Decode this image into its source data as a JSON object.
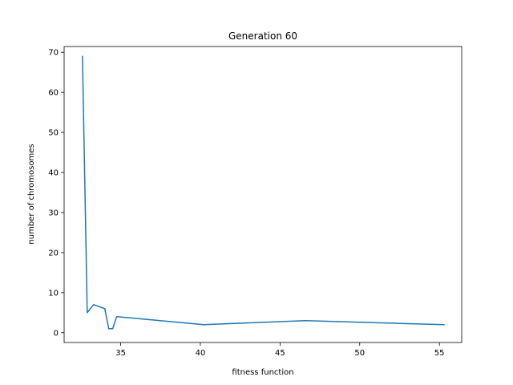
{
  "chart_data": {
    "type": "line",
    "title": "Generation 60",
    "xlabel": "fitness function",
    "ylabel": "number of chromosomes",
    "xlim": [
      31.45,
      56.4
    ],
    "ylim": [
      -2.45,
      71.45
    ],
    "xticks": [
      35,
      40,
      45,
      50,
      55
    ],
    "yticks": [
      0,
      10,
      20,
      30,
      40,
      50,
      60,
      70
    ],
    "grid": false,
    "legend": "none",
    "series": [
      {
        "color": "#1f77b4",
        "x": [
          32.6,
          32.9,
          33.3,
          34.0,
          34.25,
          34.5,
          34.75,
          40.2,
          46.6,
          55.3
        ],
        "y": [
          69,
          5,
          7,
          6,
          1,
          1,
          4,
          2,
          3,
          2
        ]
      }
    ]
  }
}
